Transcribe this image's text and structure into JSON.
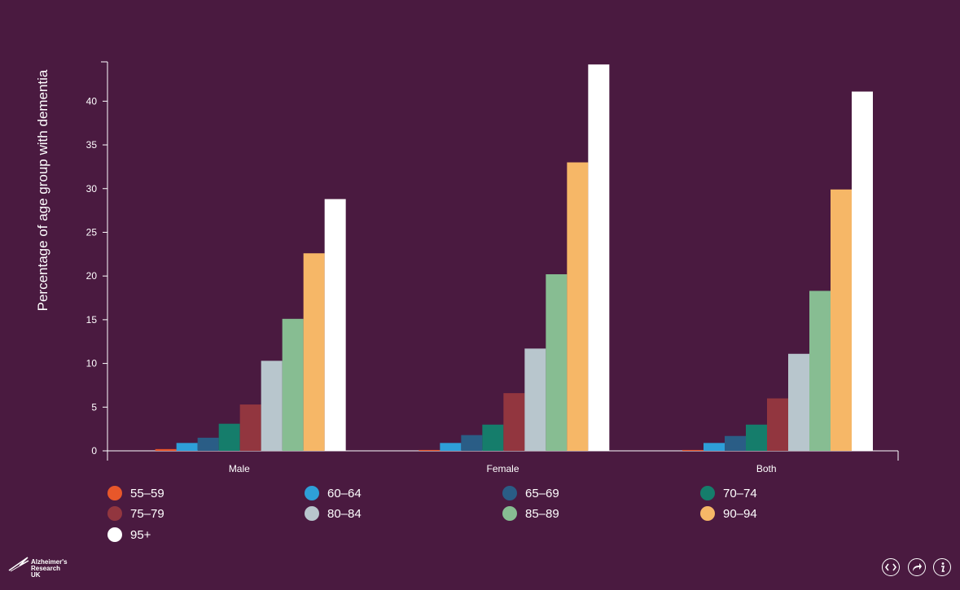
{
  "chart_data": {
    "type": "bar",
    "title": "",
    "xlabel": "",
    "ylabel": "Percentage of age group with dementia",
    "ylim": [
      0,
      44.5
    ],
    "yticks": [
      0,
      5,
      10,
      15,
      20,
      25,
      30,
      35,
      40
    ],
    "categories": [
      "Male",
      "Female",
      "Both"
    ],
    "legend_position": "bottom",
    "grid": false,
    "series": [
      {
        "name": "55–59",
        "color": "#e8572a",
        "values": [
          0.2,
          0.1,
          0.1
        ]
      },
      {
        "name": "60–64",
        "color": "#2e9fd8",
        "values": [
          0.9,
          0.9,
          0.9
        ]
      },
      {
        "name": "65–69",
        "color": "#2a5d86",
        "values": [
          1.5,
          1.8,
          1.7
        ]
      },
      {
        "name": "70–74",
        "color": "#157d6b",
        "values": [
          3.1,
          3.0,
          3.0
        ]
      },
      {
        "name": "75–79",
        "color": "#92363f",
        "values": [
          5.3,
          6.6,
          6.0
        ]
      },
      {
        "name": "80–84",
        "color": "#b8c6cd",
        "values": [
          10.3,
          11.7,
          11.1
        ]
      },
      {
        "name": "85–89",
        "color": "#87bd92",
        "values": [
          15.1,
          20.2,
          18.3
        ]
      },
      {
        "name": "90–94",
        "color": "#f6b767",
        "values": [
          22.6,
          33.0,
          29.9
        ]
      },
      {
        "name": "95+",
        "color": "#ffffff",
        "values": [
          28.8,
          44.2,
          41.1
        ]
      }
    ]
  },
  "branding": {
    "logo_lines": [
      "Alzheimer's",
      "Research",
      "UK"
    ]
  },
  "controls": {
    "embed_icon": "code-icon",
    "share_icon": "share-icon",
    "info_icon": "info-icon"
  }
}
